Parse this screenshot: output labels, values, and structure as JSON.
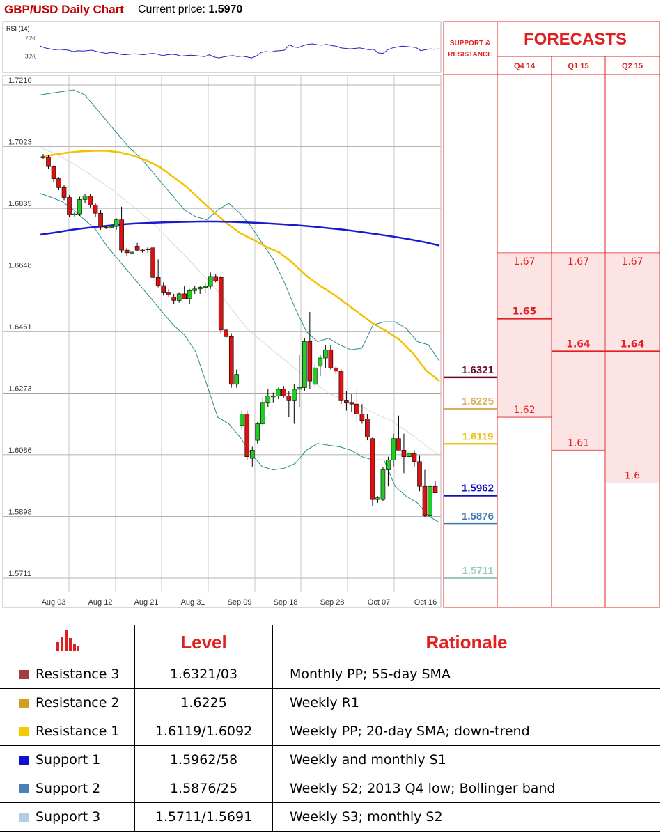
{
  "header": {
    "title": "GBP/USD Daily Chart",
    "price_label": "Current price:",
    "price_value": "1.5970"
  },
  "rsi": {
    "label": "RSI (14)",
    "levels": [
      "70%",
      "30%"
    ],
    "level_values": [
      70,
      30
    ],
    "values": [
      52,
      48,
      46,
      44,
      45,
      44,
      43,
      40,
      42,
      41,
      42,
      43,
      40,
      38,
      36,
      38,
      37,
      34,
      33,
      34,
      35,
      34,
      33,
      35,
      36,
      34,
      31,
      33,
      34,
      33,
      30,
      31,
      32,
      31,
      30,
      29,
      33,
      28,
      26,
      28,
      30,
      31,
      29,
      30,
      28,
      26,
      30,
      38,
      40,
      39,
      41,
      42,
      43,
      55,
      50,
      49,
      53,
      56,
      57,
      55,
      54,
      56,
      53,
      52,
      48,
      47,
      46,
      47,
      48,
      46,
      44,
      45,
      37,
      36,
      44,
      48,
      50,
      52,
      51,
      50,
      49,
      42,
      44,
      46,
      45,
      46
    ]
  },
  "chart_data": {
    "type": "candlestick",
    "y_ticks": [
      "1.7210",
      "1.7023",
      "1.6835",
      "1.6648",
      "1.6461",
      "1.6273",
      "1.6086",
      "1.5898",
      "1.5711"
    ],
    "ylim": [
      1.5711,
      1.721
    ],
    "x_ticks": [
      "Aug 03",
      "Aug 12",
      "Aug 21",
      "Aug 31",
      "Sep 09",
      "Sep 18",
      "Sep 28",
      "Oct 07",
      "Oct 16"
    ],
    "grid": true,
    "candles": [
      [
        1.699,
        1.7,
        1.6985,
        1.6992
      ],
      [
        1.699,
        1.6998,
        1.6955,
        1.6962
      ],
      [
        1.6962,
        1.6965,
        1.6915,
        1.6925
      ],
      [
        1.6925,
        1.693,
        1.689,
        1.6898
      ],
      [
        1.6898,
        1.6905,
        1.686,
        1.6868
      ],
      [
        1.6868,
        1.6875,
        1.6808,
        1.6815
      ],
      [
        1.6815,
        1.6825,
        1.681,
        1.6818
      ],
      [
        1.6818,
        1.687,
        1.6812,
        1.6862
      ],
      [
        1.6862,
        1.688,
        1.685,
        1.6872
      ],
      [
        1.6872,
        1.6878,
        1.6838,
        1.6845
      ],
      [
        1.6845,
        1.685,
        1.681,
        1.682
      ],
      [
        1.682,
        1.683,
        1.677,
        1.6778
      ],
      [
        1.6778,
        1.6782,
        1.6772,
        1.6776
      ],
      [
        1.6776,
        1.6785,
        1.6772,
        1.678
      ],
      [
        1.678,
        1.6805,
        1.677,
        1.68
      ],
      [
        1.68,
        1.684,
        1.67,
        1.6708
      ],
      [
        1.6708,
        1.6715,
        1.669,
        1.67
      ],
      [
        1.67,
        1.6705,
        1.6695,
        1.6702
      ],
      [
        1.672,
        1.673,
        1.6705,
        1.6708
      ],
      [
        1.6708,
        1.6712,
        1.67,
        1.6705
      ],
      [
        1.6712,
        1.6718,
        1.67,
        1.671
      ],
      [
        1.6715,
        1.672,
        1.6615,
        1.6625
      ],
      [
        1.6625,
        1.668,
        1.6595,
        1.66
      ],
      [
        1.66,
        1.661,
        1.657,
        1.658
      ],
      [
        1.658,
        1.659,
        1.6565,
        1.6572
      ],
      [
        1.6565,
        1.6575,
        1.6545,
        1.6555
      ],
      [
        1.6555,
        1.658,
        1.6548,
        1.6575
      ],
      [
        1.6575,
        1.6598,
        1.656,
        1.656
      ],
      [
        1.656,
        1.659,
        1.6545,
        1.6585
      ],
      [
        1.6585,
        1.6598,
        1.6575,
        1.659
      ],
      [
        1.659,
        1.66,
        1.6575,
        1.6595
      ],
      [
        1.6595,
        1.661,
        1.6578,
        1.6598
      ],
      [
        1.6598,
        1.664,
        1.659,
        1.6628
      ],
      [
        1.6628,
        1.6635,
        1.661,
        1.6615
      ],
      [
        1.6625,
        1.663,
        1.6455,
        1.6465
      ],
      [
        1.6465,
        1.647,
        1.644,
        1.6445
      ],
      [
        1.6445,
        1.6455,
        1.629,
        1.63
      ],
      [
        1.63,
        1.6345,
        1.629,
        1.633
      ],
      [
        1.6175,
        1.622,
        1.6165,
        1.621
      ],
      [
        1.621,
        1.622,
        1.607,
        1.608
      ],
      [
        1.6075,
        1.611,
        1.605,
        1.61
      ],
      [
        1.613,
        1.6185,
        1.612,
        1.618
      ],
      [
        1.618,
        1.626,
        1.6175,
        1.6245
      ],
      [
        1.6245,
        1.6285,
        1.623,
        1.6265
      ],
      [
        1.6265,
        1.6275,
        1.6245,
        1.6265
      ],
      [
        1.6265,
        1.629,
        1.6255,
        1.6285
      ],
      [
        1.6285,
        1.6295,
        1.626,
        1.6265
      ],
      [
        1.6265,
        1.628,
        1.62,
        1.625
      ],
      [
        1.625,
        1.63,
        1.618,
        1.6285
      ],
      [
        1.6285,
        1.639,
        1.623,
        1.629
      ],
      [
        1.629,
        1.644,
        1.628,
        1.643
      ],
      [
        1.643,
        1.652,
        1.6285,
        1.631
      ],
      [
        1.63,
        1.636,
        1.629,
        1.635
      ],
      [
        1.6355,
        1.639,
        1.6325,
        1.638
      ],
      [
        1.638,
        1.642,
        1.635,
        1.6405
      ],
      [
        1.6405,
        1.642,
        1.6345,
        1.635
      ],
      [
        1.635,
        1.6355,
        1.633,
        1.634
      ],
      [
        1.634,
        1.6345,
        1.624,
        1.625
      ],
      [
        1.625,
        1.628,
        1.622,
        1.6245
      ],
      [
        1.6245,
        1.627,
        1.6215,
        1.624
      ],
      [
        1.624,
        1.6285,
        1.6185,
        1.621
      ],
      [
        1.621,
        1.624,
        1.618,
        1.619
      ],
      [
        1.6195,
        1.621,
        1.613,
        1.614
      ],
      [
        1.6135,
        1.614,
        1.593,
        1.595
      ],
      [
        1.595,
        1.596,
        1.594,
        1.5955
      ],
      [
        1.595,
        1.605,
        1.5945,
        1.604
      ],
      [
        1.604,
        1.608,
        1.599,
        1.607
      ],
      [
        1.607,
        1.615,
        1.605,
        1.6135
      ],
      [
        1.6135,
        1.6205,
        1.61,
        1.61
      ],
      [
        1.61,
        1.615,
        1.603,
        1.608
      ],
      [
        1.608,
        1.611,
        1.606,
        1.609
      ],
      [
        1.609,
        1.61,
        1.605,
        1.6065
      ],
      [
        1.6065,
        1.6085,
        1.5975,
        1.599
      ],
      [
        1.599,
        1.604,
        1.5895,
        1.59
      ],
      [
        1.59,
        1.6005,
        1.5895,
        1.599
      ],
      [
        1.599,
        1.6005,
        1.597,
        1.597
      ]
    ],
    "sma20": [
      1.699,
      1.6998,
      1.7004,
      1.7008,
      1.701,
      1.701,
      1.7005,
      1.6995,
      1.698,
      1.696,
      1.693,
      1.69,
      1.6862,
      1.6825,
      1.679,
      1.676,
      1.674,
      1.6718,
      1.67,
      1.6668,
      1.663,
      1.66,
      1.6575,
      1.6545,
      1.6515,
      1.6485,
      1.6462,
      1.6435,
      1.6395,
      1.6342,
      1.631
    ],
    "sma55": [
      1.6755,
      1.6762,
      1.677,
      1.6776,
      1.6781,
      1.6786,
      1.6789,
      1.6791,
      1.6793,
      1.6794,
      1.6795,
      1.6795,
      1.6794,
      1.6792,
      1.679,
      1.6787,
      1.6784,
      1.678,
      1.6775,
      1.677,
      1.6764,
      1.6757,
      1.675,
      1.6742,
      1.6733,
      1.6722
    ],
    "bb_upper": [
      1.718,
      1.7185,
      1.719,
      1.7195,
      1.718,
      1.714,
      1.71,
      1.706,
      1.702,
      1.699,
      1.695,
      1.691,
      1.687,
      1.683,
      1.681,
      1.68,
      1.683,
      1.685,
      1.682,
      1.678,
      1.673,
      1.668,
      1.661,
      1.653,
      1.646,
      1.643,
      1.644,
      1.642,
      1.6405,
      1.641,
      1.648,
      1.649,
      1.649,
      1.647,
      1.643,
      1.642,
      1.637
    ],
    "bb_lower": [
      1.688,
      1.6868,
      1.6855,
      1.683,
      1.68,
      1.677,
      1.672,
      1.668,
      1.664,
      1.66,
      1.656,
      1.652,
      1.648,
      1.645,
      1.64,
      1.63,
      1.62,
      1.618,
      1.614,
      1.609,
      1.605,
      1.604,
      1.6045,
      1.606,
      1.61,
      1.612,
      1.6115,
      1.611,
      1.61,
      1.608,
      1.607,
      1.607,
      1.599,
      1.596,
      1.594,
      1.59,
      1.588
    ],
    "bb_mid": [
      1.702,
      1.7005,
      1.6985,
      1.6965,
      1.694,
      1.6915,
      1.689,
      1.686,
      1.683,
      1.68,
      1.6765,
      1.6725,
      1.669,
      1.665,
      1.661,
      1.657,
      1.652,
      1.6475,
      1.644,
      1.641,
      1.638,
      1.635,
      1.632,
      1.6295,
      1.627,
      1.6255,
      1.624,
      1.6225,
      1.6205,
      1.619,
      1.6165,
      1.614,
      1.611,
      1.6085
    ]
  },
  "support_resistance": {
    "header": "SUPPORT & RESISTANCE",
    "levels": [
      {
        "label": "1.6321",
        "value": 1.6321,
        "color": "#6b0f2e"
      },
      {
        "label": "1.6225",
        "value": 1.6225,
        "color": "#d8b060"
      },
      {
        "label": "1.6119",
        "value": 1.6119,
        "color": "#f0c020"
      },
      {
        "label": "1.5962",
        "value": 1.5962,
        "color": "#1010c0"
      },
      {
        "label": "1.5876",
        "value": 1.5876,
        "color": "#3a78b0"
      },
      {
        "label": "1.5711",
        "value": 1.5711,
        "color": "#9cc8c0"
      }
    ]
  },
  "forecasts": {
    "title": "FORECASTS",
    "columns": [
      {
        "label": "Q4 14",
        "high": "1.67",
        "high_value": 1.67,
        "mid": "1.65",
        "mid_value": 1.65,
        "low": "1.62",
        "low_value": 1.62
      },
      {
        "label": "Q1 15",
        "high": "1.67",
        "high_value": 1.67,
        "mid": "1.64",
        "mid_value": 1.64,
        "low": "1.61",
        "low_value": 1.61
      },
      {
        "label": "Q2 15",
        "high": "1.67",
        "high_value": 1.67,
        "mid": "1.64",
        "mid_value": 1.64,
        "low": "1.6",
        "low_value": 1.6
      }
    ]
  },
  "levels_table": {
    "headers": [
      "Level",
      "Rationale"
    ],
    "rows": [
      {
        "name": "Resistance 3",
        "color": "#a04040",
        "level": "1.6321/03",
        "rationale": "Monthly PP; 55-day SMA"
      },
      {
        "name": "Resistance 2",
        "color": "#d0a020",
        "level": "1.6225",
        "rationale": "Weekly R1"
      },
      {
        "name": "Resistance 1",
        "color": "#f5c800",
        "level": "1.6119/1.6092",
        "rationale": "Weekly PP; 20-day SMA; down-trend"
      },
      {
        "name": "Support 1",
        "color": "#1010d0",
        "level": "1.5962/58",
        "rationale": "Weekly and monthly S1"
      },
      {
        "name": "Support 2",
        "color": "#4a80b8",
        "level": "1.5876/25",
        "rationale": "Weekly S2; 2013 Q4 low; Bollinger band"
      },
      {
        "name": "Support 3",
        "color": "#b8cce0",
        "level": "1.5711/1.5691",
        "rationale": "Weekly S3; monthly S2"
      }
    ]
  }
}
